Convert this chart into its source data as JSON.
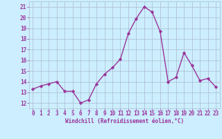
{
  "x": [
    0,
    1,
    2,
    3,
    4,
    5,
    6,
    7,
    8,
    9,
    10,
    11,
    12,
    13,
    14,
    15,
    16,
    17,
    18,
    19,
    20,
    21,
    22,
    23
  ],
  "y": [
    13.3,
    13.6,
    13.8,
    14.0,
    13.1,
    13.1,
    12.0,
    12.3,
    13.8,
    14.7,
    15.3,
    16.1,
    18.5,
    19.9,
    21.0,
    20.5,
    18.7,
    14.0,
    14.4,
    16.7,
    15.5,
    14.1,
    14.3,
    13.5
  ],
  "line_color": "#993399",
  "marker": "D",
  "marker_size": 2.2,
  "linewidth": 1.0,
  "bg_color": "#cceeff",
  "plot_bg_color": "#cceeff",
  "grid_color": "#aabbcc",
  "xlabel": "Windchill (Refroidissement éolien,°C)",
  "xlabel_color": "#993399",
  "tick_color": "#993399",
  "ylim": [
    11.5,
    21.5
  ],
  "xlim": [
    -0.5,
    23.5
  ],
  "yticks": [
    12,
    13,
    14,
    15,
    16,
    17,
    18,
    19,
    20,
    21
  ],
  "xticks": [
    0,
    1,
    2,
    3,
    4,
    5,
    6,
    7,
    8,
    9,
    10,
    11,
    12,
    13,
    14,
    15,
    16,
    17,
    18,
    19,
    20,
    21,
    22,
    23
  ],
  "tick_fontsize": 5.5,
  "xlabel_fontsize": 5.5
}
